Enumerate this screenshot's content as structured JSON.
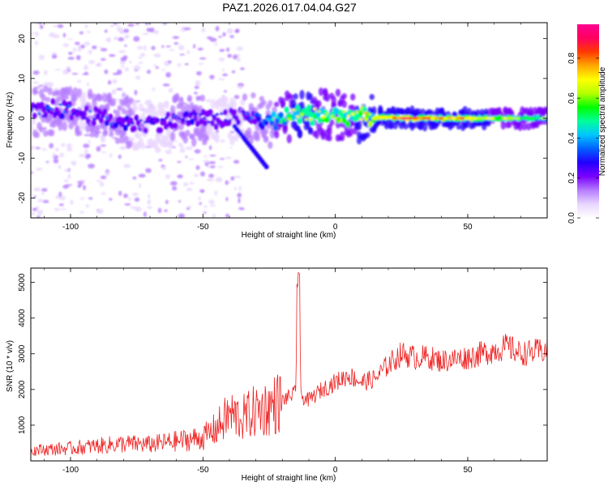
{
  "title": "PAZ1.2026.017.04.04.G27",
  "chart_data": [
    {
      "type": "heatmap",
      "title": "PAZ1.2026.017.04.04.G27",
      "xlabel": "Height of straight line (km)",
      "ylabel": "Frequency (Hz)",
      "xlim": [
        -115,
        80
      ],
      "ylim": [
        -25,
        24
      ],
      "xticks": [
        -100,
        -50,
        0,
        50
      ],
      "yticks": [
        -20,
        -10,
        0,
        10,
        20
      ],
      "xtick_labels": [
        "-100",
        "-50",
        "0",
        "50"
      ],
      "ytick_labels": [
        "-20",
        "-10",
        "0",
        "10",
        "20"
      ],
      "colorbar": {
        "label": "Normalized spectral amplitude",
        "range": [
          0,
          0.97
        ],
        "ticks": [
          "0.0",
          "0.2",
          "0.4",
          "0.6",
          "0.8"
        ],
        "colormap": [
          "#ffffff",
          "#e9d6ff",
          "#b57cff",
          "#7a00ff",
          "#2300ff",
          "#0060ff",
          "#00c6ff",
          "#00ff9a",
          "#00ff00",
          "#b5ff00",
          "#ffff00",
          "#ffa800",
          "#ff3a00",
          "#ff0060",
          "#ff0090"
        ]
      },
      "ridge": {
        "description_points_x": [
          -115,
          -105,
          -95,
          -85,
          -75,
          -65,
          -55,
          -45,
          -35,
          -25,
          -15,
          -5,
          5,
          15,
          25,
          40,
          60,
          80
        ],
        "center_freq_hz": [
          1.5,
          2.5,
          1.0,
          -0.5,
          -1.5,
          -1.0,
          0.0,
          -0.5,
          0.5,
          -1.0,
          1.0,
          0.8,
          0.5,
          0.3,
          0.0,
          0.0,
          0.0,
          0.0
        ],
        "peak_amplitude": [
          0.3,
          0.35,
          0.3,
          0.35,
          0.3,
          0.3,
          0.32,
          0.3,
          0.3,
          0.45,
          0.75,
          0.7,
          0.7,
          0.75,
          0.9,
          0.85,
          0.7,
          0.6
        ]
      }
    },
    {
      "type": "line",
      "xlabel": "Height of straight line (km)",
      "ylabel": "SNR (10 * v/v)",
      "xlim": [
        -115,
        80
      ],
      "ylim": [
        0,
        5400
      ],
      "xticks": [
        -100,
        -50,
        0,
        50
      ],
      "yticks": [
        1000,
        2000,
        3000,
        4000,
        5000
      ],
      "xtick_labels": [
        "-100",
        "-50",
        "0",
        "50"
      ],
      "ytick_labels": [
        "1000",
        "2000",
        "3000",
        "4000",
        "5000"
      ],
      "color": "#ee2222",
      "trend_x": [
        -115,
        -100,
        -90,
        -80,
        -70,
        -60,
        -50,
        -45,
        -40,
        -35,
        -30,
        -25,
        -20,
        -15,
        -14,
        -13,
        -10,
        -5,
        0,
        5,
        10,
        15,
        20,
        25,
        30,
        35,
        40,
        45,
        50,
        55,
        60,
        65,
        70,
        75,
        80
      ],
      "trend_y": [
        300,
        350,
        420,
        480,
        460,
        550,
        650,
        900,
        1300,
        1200,
        1400,
        1500,
        1700,
        1900,
        5300,
        1800,
        1700,
        2000,
        2200,
        2400,
        2200,
        2300,
        2700,
        3000,
        2900,
        2900,
        2800,
        2850,
        2900,
        3000,
        3100,
        3200,
        3000,
        3050,
        3100
      ]
    }
  ]
}
